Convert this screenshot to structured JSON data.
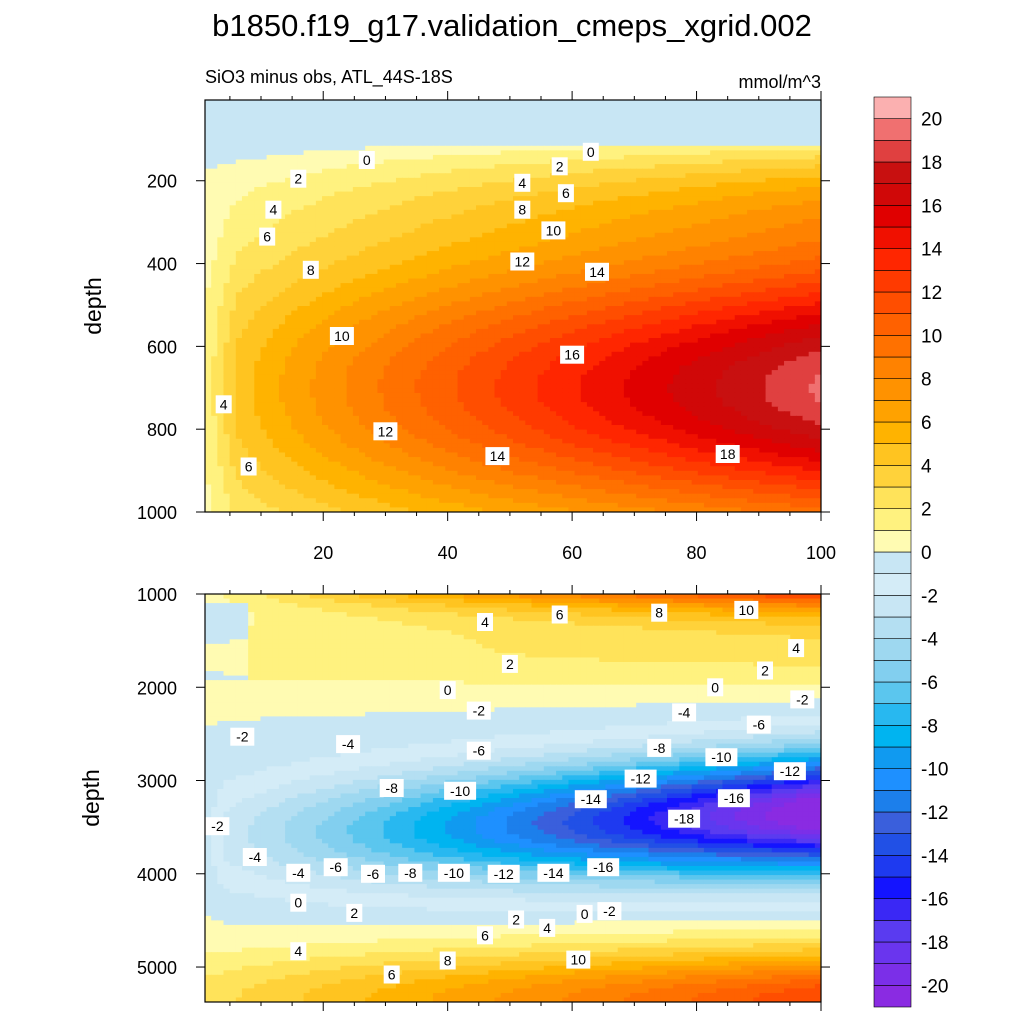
{
  "figure": {
    "title": "b1850.f19_g17.validation_cmeps_xgrid.002",
    "subtitle_left": "SiO3 minus obs, ATL_44S-18S",
    "subtitle_right": "mmol/m^3"
  },
  "chart_data": [
    {
      "type": "contour",
      "panel": "upper",
      "xlabel": "",
      "ylabel": "depth",
      "xlim": [
        1,
        100
      ],
      "ylim": [
        1000,
        5
      ],
      "x_ticks": [
        20,
        40,
        60,
        80,
        100
      ],
      "y_ticks": [
        200,
        400,
        600,
        800,
        1000
      ],
      "x_tick_labels": [
        "20",
        "40",
        "60",
        "80",
        "100"
      ],
      "y_tick_labels": [
        "200",
        "400",
        "600",
        "800",
        "1000"
      ],
      "field": {
        "top_band": [
          {
            "min": -2,
            "max": 0,
            "depth_to": 110
          }
        ],
        "core_center": {
          "x": 96,
          "depth": 700
        },
        "core_max_value": 19
      },
      "contour_labels": [
        {
          "text": "0",
          "x": 27,
          "y": 150
        },
        {
          "text": "0",
          "x": 63,
          "y": 130
        },
        {
          "text": "2",
          "x": 16,
          "y": 195
        },
        {
          "text": "2",
          "x": 58,
          "y": 165
        },
        {
          "text": "4",
          "x": 12,
          "y": 270
        },
        {
          "text": "4",
          "x": 52,
          "y": 205
        },
        {
          "text": "6",
          "x": 11,
          "y": 335
        },
        {
          "text": "6",
          "x": 59,
          "y": 230
        },
        {
          "text": "8",
          "x": 18,
          "y": 415
        },
        {
          "text": "8",
          "x": 52,
          "y": 270
        },
        {
          "text": "10",
          "x": 23,
          "y": 575
        },
        {
          "text": "10",
          "x": 57,
          "y": 320
        },
        {
          "text": "12",
          "x": 52,
          "y": 395
        },
        {
          "text": "12",
          "x": 30,
          "y": 805
        },
        {
          "text": "14",
          "x": 64,
          "y": 420
        },
        {
          "text": "14",
          "x": 48,
          "y": 865
        },
        {
          "text": "16",
          "x": 60,
          "y": 620
        },
        {
          "text": "18",
          "x": 85,
          "y": 860
        },
        {
          "text": "4",
          "x": 4,
          "y": 740
        },
        {
          "text": "6",
          "x": 8,
          "y": 890
        }
      ]
    },
    {
      "type": "contour",
      "panel": "lower",
      "xlabel": "",
      "ylabel": "depth",
      "xlim": [
        1,
        100
      ],
      "ylim": [
        5375,
        1000
      ],
      "x_ticks": [
        20,
        40,
        60,
        80,
        100
      ],
      "y_ticks": [
        1000,
        2000,
        3000,
        4000,
        5000
      ],
      "x_tick_labels": [
        "",
        "",
        "",
        "",
        ""
      ],
      "y_tick_labels": [
        "1000",
        "2000",
        "3000",
        "4000",
        "5000"
      ],
      "field": {
        "core_center": {
          "x": 96,
          "depth": 3700
        },
        "core_min_value": -21
      },
      "contour_labels": [
        {
          "text": "4",
          "x": 46,
          "y": 1300
        },
        {
          "text": "6",
          "x": 58,
          "y": 1220
        },
        {
          "text": "8",
          "x": 74,
          "y": 1200
        },
        {
          "text": "10",
          "x": 88,
          "y": 1170
        },
        {
          "text": "4",
          "x": 96,
          "y": 1580
        },
        {
          "text": "2",
          "x": 50,
          "y": 1750
        },
        {
          "text": "2",
          "x": 91,
          "y": 1820
        },
        {
          "text": "0",
          "x": 40,
          "y": 2030
        },
        {
          "text": "0",
          "x": 83,
          "y": 2000
        },
        {
          "text": "-2",
          "x": 97,
          "y": 2130
        },
        {
          "text": "-2",
          "x": 45,
          "y": 2250
        },
        {
          "text": "-4",
          "x": 78,
          "y": 2270
        },
        {
          "text": "-6",
          "x": 90,
          "y": 2400
        },
        {
          "text": "-2",
          "x": 7,
          "y": 2530
        },
        {
          "text": "-4",
          "x": 24,
          "y": 2610
        },
        {
          "text": "-6",
          "x": 45,
          "y": 2680
        },
        {
          "text": "-8",
          "x": 74,
          "y": 2650
        },
        {
          "text": "-10",
          "x": 84,
          "y": 2750
        },
        {
          "text": "-12",
          "x": 95,
          "y": 2900
        },
        {
          "text": "-12",
          "x": 71,
          "y": 2980
        },
        {
          "text": "-8",
          "x": 31,
          "y": 3080
        },
        {
          "text": "-10",
          "x": 42,
          "y": 3110
        },
        {
          "text": "-14",
          "x": 63,
          "y": 3200
        },
        {
          "text": "-16",
          "x": 86,
          "y": 3190
        },
        {
          "text": "-18",
          "x": 78,
          "y": 3410
        },
        {
          "text": "-2",
          "x": 3,
          "y": 3490
        },
        {
          "text": "-4",
          "x": 9,
          "y": 3820
        },
        {
          "text": "-6",
          "x": 22,
          "y": 3930
        },
        {
          "text": "-4",
          "x": 16,
          "y": 3990
        },
        {
          "text": "-6",
          "x": 28,
          "y": 4000
        },
        {
          "text": "-8",
          "x": 34,
          "y": 3990
        },
        {
          "text": "-10",
          "x": 41,
          "y": 3990
        },
        {
          "text": "-12",
          "x": 49,
          "y": 4000
        },
        {
          "text": "-14",
          "x": 57,
          "y": 3990
        },
        {
          "text": "-16",
          "x": 65,
          "y": 3930
        },
        {
          "text": "0",
          "x": 16,
          "y": 4310
        },
        {
          "text": "2",
          "x": 25,
          "y": 4420
        },
        {
          "text": "2",
          "x": 51,
          "y": 4490
        },
        {
          "text": "4",
          "x": 56,
          "y": 4580
        },
        {
          "text": "0",
          "x": 62,
          "y": 4430
        },
        {
          "text": "-2",
          "x": 66,
          "y": 4400
        },
        {
          "text": "6",
          "x": 46,
          "y": 4660
        },
        {
          "text": "4",
          "x": 16,
          "y": 4830
        },
        {
          "text": "8",
          "x": 40,
          "y": 4930
        },
        {
          "text": "10",
          "x": 61,
          "y": 4920
        },
        {
          "text": "6",
          "x": 31,
          "y": 5080
        }
      ]
    }
  ],
  "colorbar": {
    "levels": [
      -21,
      -20,
      -19,
      -18,
      -17,
      -16,
      -15,
      -14,
      -13,
      -12,
      -11,
      -10,
      -9,
      -8,
      -7,
      -6,
      -5,
      -4,
      -3,
      -2,
      -1,
      0,
      1,
      2,
      3,
      4,
      5,
      6,
      7,
      8,
      9,
      10,
      11,
      12,
      13,
      14,
      15,
      16,
      17,
      18,
      19,
      20,
      21
    ],
    "tick_labels": [
      "-20",
      "-18",
      "-16",
      "-14",
      "-12",
      "-10",
      "-8",
      "-6",
      "-4",
      "-2",
      "0",
      "2",
      "4",
      "6",
      "8",
      "10",
      "12",
      "14",
      "16",
      "18",
      "20"
    ],
    "tick_values": [
      -20,
      -18,
      -16,
      -14,
      -12,
      -10,
      -8,
      -6,
      -4,
      -2,
      0,
      2,
      4,
      6,
      8,
      10,
      12,
      14,
      16,
      18,
      20
    ],
    "colors": [
      "#8A2BE2",
      "#7B2FE8",
      "#6A35EE",
      "#5A3BF0",
      "#3A28F5",
      "#1414FF",
      "#1E3AF0",
      "#2150E6",
      "#3A5FDC",
      "#1C7FEB",
      "#1E90FF",
      "#109AF0",
      "#00B4F0",
      "#28B8F0",
      "#5BC6EE",
      "#82CFEF",
      "#9ED8F0",
      "#B4DFF2",
      "#C8E6F4",
      "#D4ECF7",
      "#C8E6F4",
      "#FFFBB2",
      "#FFF27F",
      "#FFE35A",
      "#FFD23A",
      "#FFC420",
      "#FFB300",
      "#FFA200",
      "#FF9200",
      "#FF8200",
      "#FF7100",
      "#FF6100",
      "#FF4E00",
      "#FF3A00",
      "#FF2600",
      "#F01000",
      "#E00000",
      "#D00808",
      "#C81010",
      "#E04040",
      "#F07070",
      "#FBB0B0"
    ]
  }
}
